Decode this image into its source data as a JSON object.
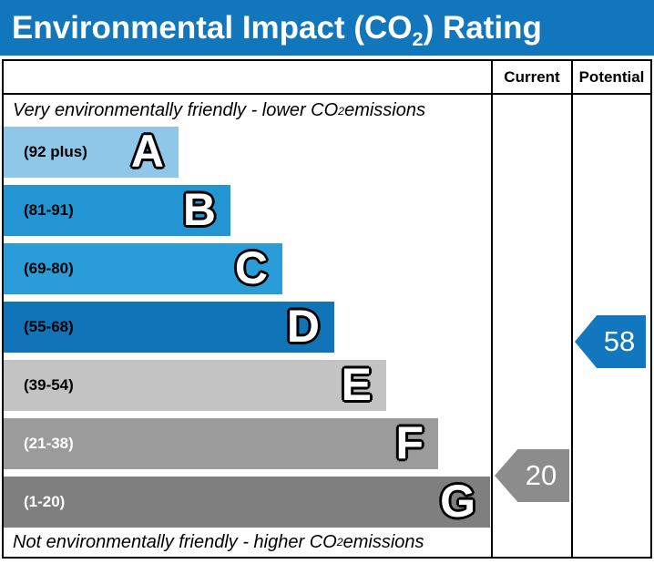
{
  "title": {
    "pre": "Environmental Impact (CO",
    "sub": "2",
    "post": ") Rating"
  },
  "columns": {
    "current": "Current",
    "potential": "Potential"
  },
  "notes": {
    "top": {
      "pre": "Very environmentally friendly - lower CO",
      "sub": "2",
      "post": " emissions"
    },
    "bottom": {
      "pre": "Not environmentally friendly - higher CO",
      "sub": "2",
      "post": " emissions"
    }
  },
  "colors": {
    "title_bar": "#1176bb",
    "border": "#000000",
    "background": "#ffffff"
  },
  "chart_data": {
    "type": "bar",
    "title": "Environmental Impact (CO2) Rating",
    "xlabel": "",
    "ylabel": "",
    "value_range": [
      1,
      100
    ],
    "legend": [
      "Current",
      "Potential"
    ],
    "bands": [
      {
        "letter": "A",
        "range_label": "(92 plus)",
        "range_min": 92,
        "range_max": 100,
        "color": "#8fc7e8",
        "label_color": "#000000"
      },
      {
        "letter": "B",
        "range_label": "(81-91)",
        "range_min": 81,
        "range_max": 91,
        "color": "#2295d2",
        "label_color": "#000000"
      },
      {
        "letter": "C",
        "range_label": "(69-80)",
        "range_min": 69,
        "range_max": 80,
        "color": "#2a9cd7",
        "label_color": "#000000"
      },
      {
        "letter": "D",
        "range_label": "(55-68)",
        "range_min": 55,
        "range_max": 68,
        "color": "#1173b8",
        "label_color": "#000000"
      },
      {
        "letter": "E",
        "range_label": "(39-54)",
        "range_min": 39,
        "range_max": 54,
        "color": "#c3c3c3",
        "label_color": "#000000"
      },
      {
        "letter": "F",
        "range_label": "(21-38)",
        "range_min": 21,
        "range_max": 38,
        "color": "#9b9b9b",
        "label_color": "#ffffff"
      },
      {
        "letter": "G",
        "range_label": "(1-20)",
        "range_min": 1,
        "range_max": 20,
        "color": "#7f7f7f",
        "label_color": "#ffffff"
      }
    ],
    "current": {
      "value": 20,
      "band": "G",
      "arrow_color": "#8c8c8c"
    },
    "potential": {
      "value": 58,
      "band": "D",
      "arrow_color": "#1377bf"
    }
  }
}
